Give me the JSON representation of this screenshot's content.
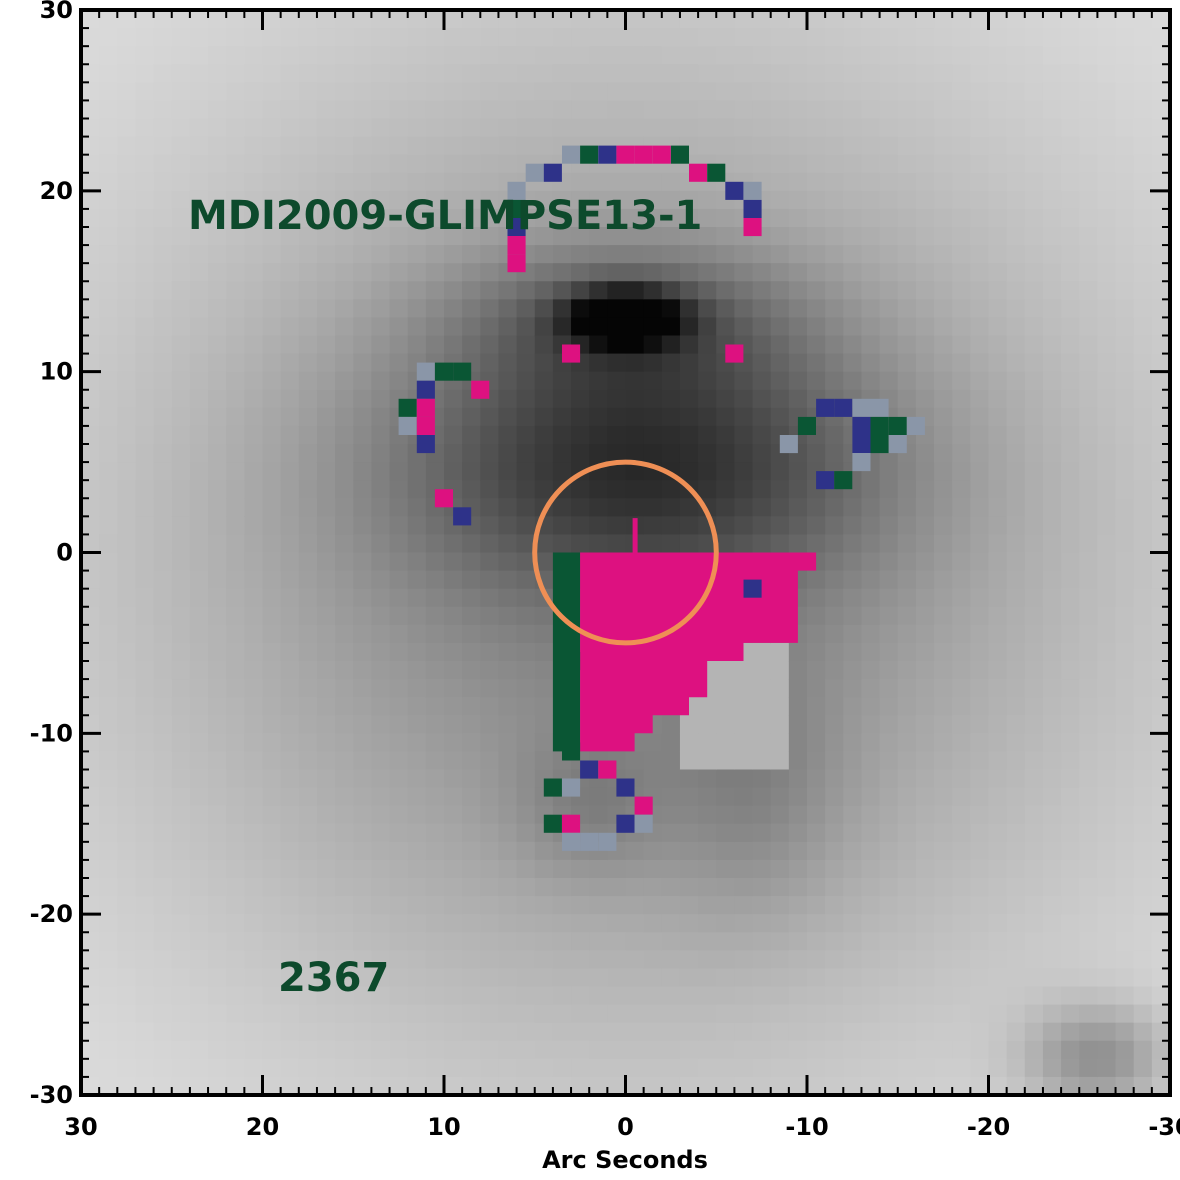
{
  "chart_data": {
    "type": "heatmap",
    "title": "",
    "xlabel": "Arc Seconds",
    "ylabel": "",
    "xlim": [
      30,
      -30
    ],
    "ylim": [
      -30,
      30
    ],
    "x_ticks": [
      30,
      20,
      10,
      0,
      -10,
      -20,
      -30
    ],
    "y_ticks": [
      30,
      20,
      10,
      0,
      -10,
      -20,
      -30
    ],
    "x_tick_labels": [
      "30",
      "20",
      "10",
      "0",
      "-10",
      "-20",
      "-30"
    ],
    "y_tick_labels": [
      "30",
      "20",
      "10",
      "0",
      "-10",
      "-20",
      "-30"
    ],
    "annotations": {
      "name": "MDI2009-GLIMPSE13-1",
      "id": "2367"
    },
    "aperture": {
      "center": [
        0,
        0
      ],
      "radius_arcsec": 5
    },
    "colors": {
      "magenta": "#dd1180",
      "green": "#0a5634",
      "navy": "#2e3289",
      "slate": "#8a96a8",
      "aperture": "#ef8f55",
      "annotation": "#0d4a2c"
    },
    "mask_pixels": [
      {
        "x": 3,
        "y": 22,
        "c": "slate"
      },
      {
        "x": 2,
        "y": 22,
        "c": "green"
      },
      {
        "x": 1,
        "y": 22,
        "c": "navy"
      },
      {
        "x": 0,
        "y": 22,
        "c": "magenta"
      },
      {
        "x": -1,
        "y": 22,
        "c": "magenta"
      },
      {
        "x": -2,
        "y": 22,
        "c": "magenta"
      },
      {
        "x": -3,
        "y": 22,
        "c": "green"
      },
      {
        "x": 5,
        "y": 21,
        "c": "slate"
      },
      {
        "x": 4,
        "y": 21,
        "c": "navy"
      },
      {
        "x": -4,
        "y": 21,
        "c": "magenta"
      },
      {
        "x": -5,
        "y": 21,
        "c": "green"
      },
      {
        "x": 6,
        "y": 20,
        "c": "slate"
      },
      {
        "x": -6,
        "y": 20,
        "c": "navy"
      },
      {
        "x": -7,
        "y": 20,
        "c": "slate"
      },
      {
        "x": 6,
        "y": 19,
        "c": "green"
      },
      {
        "x": -7,
        "y": 19,
        "c": "navy"
      },
      {
        "x": 6,
        "y": 18,
        "c": "navy"
      },
      {
        "x": -7,
        "y": 18,
        "c": "magenta"
      },
      {
        "x": 6,
        "y": 17,
        "c": "magenta"
      },
      {
        "x": 6,
        "y": 16,
        "c": "magenta"
      },
      {
        "x": 3,
        "y": 11,
        "c": "magenta"
      },
      {
        "x": -6,
        "y": 11,
        "c": "magenta"
      },
      {
        "x": 11,
        "y": 10,
        "c": "slate"
      },
      {
        "x": 10,
        "y": 10,
        "c": "green"
      },
      {
        "x": 9,
        "y": 10,
        "c": "green"
      },
      {
        "x": 11,
        "y": 9,
        "c": "navy"
      },
      {
        "x": 8,
        "y": 9,
        "c": "magenta"
      },
      {
        "x": 12,
        "y": 8,
        "c": "green"
      },
      {
        "x": 11,
        "y": 8,
        "c": "magenta"
      },
      {
        "x": 12,
        "y": 7,
        "c": "slate"
      },
      {
        "x": 11,
        "y": 7,
        "c": "magenta"
      },
      {
        "x": 11,
        "y": 6,
        "c": "navy"
      },
      {
        "x": 10,
        "y": 3,
        "c": "magenta"
      },
      {
        "x": 9,
        "y": 2,
        "c": "navy"
      },
      {
        "x": -9,
        "y": 6,
        "c": "slate"
      },
      {
        "x": -10,
        "y": 7,
        "c": "green"
      },
      {
        "x": -11,
        "y": 8,
        "c": "navy"
      },
      {
        "x": -12,
        "y": 8,
        "c": "navy"
      },
      {
        "x": -13,
        "y": 8,
        "c": "slate"
      },
      {
        "x": -14,
        "y": 8,
        "c": "slate"
      },
      {
        "x": -13,
        "y": 7,
        "c": "navy"
      },
      {
        "x": -14,
        "y": 7,
        "c": "green"
      },
      {
        "x": -15,
        "y": 7,
        "c": "green"
      },
      {
        "x": -16,
        "y": 7,
        "c": "slate"
      },
      {
        "x": -13,
        "y": 6,
        "c": "navy"
      },
      {
        "x": -14,
        "y": 6,
        "c": "green"
      },
      {
        "x": -15,
        "y": 6,
        "c": "slate"
      },
      {
        "x": -13,
        "y": 5,
        "c": "slate"
      },
      {
        "x": -11,
        "y": 4,
        "c": "navy"
      },
      {
        "x": -12,
        "y": 4,
        "c": "green"
      },
      {
        "x": -7,
        "y": -2,
        "c": "navy"
      },
      {
        "x": 3,
        "y": -6,
        "c": "green"
      },
      {
        "x": 3,
        "y": -11,
        "c": "green"
      },
      {
        "x": 2,
        "y": -12,
        "c": "navy"
      },
      {
        "x": 1,
        "y": -12,
        "c": "magenta"
      },
      {
        "x": 4,
        "y": -13,
        "c": "green"
      },
      {
        "x": 3,
        "y": -13,
        "c": "slate"
      },
      {
        "x": 0,
        "y": -13,
        "c": "navy"
      },
      {
        "x": -1,
        "y": -14,
        "c": "magenta"
      },
      {
        "x": 4,
        "y": -15,
        "c": "green"
      },
      {
        "x": 3,
        "y": -15,
        "c": "magenta"
      },
      {
        "x": 0,
        "y": -15,
        "c": "navy"
      },
      {
        "x": -1,
        "y": -15,
        "c": "slate"
      },
      {
        "x": 3,
        "y": -16,
        "c": "slate"
      },
      {
        "x": 2,
        "y": -16,
        "c": "slate"
      },
      {
        "x": 1,
        "y": -16,
        "c": "slate"
      }
    ],
    "mask_regions": [
      {
        "name": "green-strip",
        "c": "green",
        "x_from": 4,
        "x_to": 2.5,
        "y_from": 0,
        "y_to": -11
      },
      {
        "name": "magenta-wedge",
        "c": "magenta",
        "points": [
          [
            2.5,
            0
          ],
          [
            -10.5,
            0
          ],
          [
            -10.5,
            -1
          ],
          [
            -9.5,
            -1
          ],
          [
            -9.5,
            -5
          ],
          [
            -6.5,
            -5
          ],
          [
            -6.5,
            -6
          ],
          [
            -4.5,
            -6
          ],
          [
            -4.5,
            -8
          ],
          [
            -3.5,
            -8
          ],
          [
            -3.5,
            -9
          ],
          [
            -2.5,
            -9
          ],
          [
            -1.5,
            -9
          ],
          [
            -1.5,
            -10
          ],
          [
            -0.5,
            -10
          ],
          [
            -0.5,
            -11
          ],
          [
            2.5,
            -11
          ]
        ]
      }
    ]
  }
}
